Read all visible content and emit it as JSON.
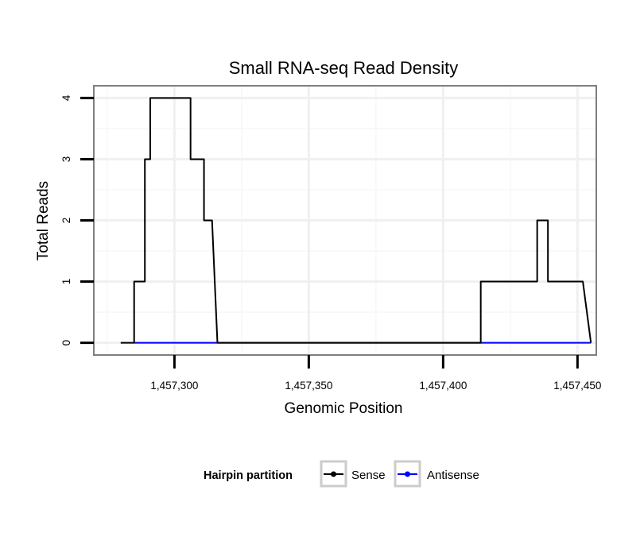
{
  "chart_data": {
    "type": "line",
    "title": "Small RNA-seq Read Density",
    "xlabel": "Genomic Position",
    "ylabel": "Total Reads",
    "xlim": [
      1457270,
      1457457
    ],
    "ylim": [
      -0.2,
      4.2
    ],
    "x_ticks": [
      1457300,
      1457350,
      1457400,
      1457450
    ],
    "x_tick_labels": [
      "1,457,300",
      "1,457,350",
      "1,457,400",
      "1,457,450"
    ],
    "y_ticks": [
      0,
      1,
      2,
      3,
      4
    ],
    "y_tick_labels": [
      "0",
      "1",
      "2",
      "3",
      "4"
    ],
    "grid": true,
    "legend": {
      "title": "Hairpin partition",
      "position": "bottom"
    },
    "series": [
      {
        "name": "Sense",
        "color": "#000000",
        "x": [
          1457280,
          1457285,
          1457285,
          1457289,
          1457289,
          1457291,
          1457291,
          1457292,
          1457292,
          1457306,
          1457306,
          1457309,
          1457309,
          1457311,
          1457311,
          1457314,
          1457314,
          1457316,
          1457412,
          1457414,
          1457414,
          1457435,
          1457435,
          1457439,
          1457439,
          1457452,
          1457452,
          1457455
        ],
        "y": [
          0,
          0,
          1,
          1,
          3,
          3,
          4,
          4,
          4,
          4,
          3,
          3,
          3,
          3,
          2,
          2,
          2,
          0,
          0,
          0,
          1,
          1,
          2,
          2,
          1,
          1,
          1,
          0
        ]
      },
      {
        "name": "Antisense",
        "color": "#0000ff",
        "x": [
          1457285,
          1457315,
          1457412,
          1457455
        ],
        "y": [
          0,
          0,
          0,
          0
        ]
      }
    ]
  }
}
